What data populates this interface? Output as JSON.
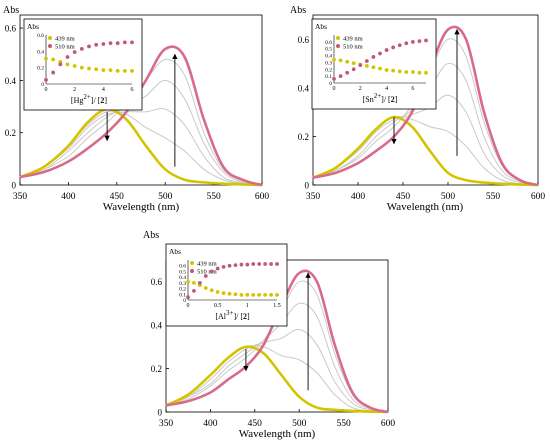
{
  "chart_data": [
    {
      "type": "line",
      "id": "hg",
      "ylabel": "Abs",
      "xlabel": "Wavelength (nm)",
      "xlim": [
        350,
        600
      ],
      "ylim": [
        0,
        0.65
      ],
      "xticks": [
        350,
        400,
        450,
        500,
        550,
        600
      ],
      "yticks": [
        0,
        0.2,
        0.4,
        0.6
      ],
      "ytick_labels": [
        "0",
        "0.2",
        "0.4",
        "0.6"
      ],
      "series": [
        {
          "color": "#d4c400",
          "style": "initial",
          "x": [
            350,
            375,
            400,
            420,
            440,
            460,
            480,
            500,
            520,
            540,
            560,
            580,
            600
          ],
          "y": [
            0.03,
            0.07,
            0.15,
            0.24,
            0.29,
            0.25,
            0.15,
            0.06,
            0.02,
            0.01,
            0.005,
            0.002,
            0.0
          ]
        },
        {
          "color": "#c9c9c9",
          "style": "mid",
          "x": [
            350,
            375,
            400,
            420,
            440,
            460,
            480,
            500,
            520,
            540,
            560,
            580,
            600
          ],
          "y": [
            0.03,
            0.07,
            0.15,
            0.23,
            0.28,
            0.27,
            0.22,
            0.18,
            0.13,
            0.06,
            0.02,
            0.005,
            0.0
          ]
        },
        {
          "color": "#c9c9c9",
          "style": "mid",
          "x": [
            350,
            375,
            400,
            420,
            440,
            460,
            480,
            500,
            520,
            540,
            560,
            580,
            600
          ],
          "y": [
            0.03,
            0.07,
            0.14,
            0.22,
            0.27,
            0.28,
            0.28,
            0.29,
            0.23,
            0.11,
            0.03,
            0.008,
            0.0
          ]
        },
        {
          "color": "#c9c9c9",
          "style": "mid",
          "x": [
            350,
            375,
            400,
            420,
            440,
            460,
            480,
            500,
            520,
            540,
            560,
            580,
            600
          ],
          "y": [
            0.03,
            0.06,
            0.13,
            0.2,
            0.26,
            0.3,
            0.34,
            0.4,
            0.33,
            0.16,
            0.05,
            0.01,
            0.0
          ]
        },
        {
          "color": "#c9c9c9",
          "style": "mid",
          "x": [
            350,
            375,
            400,
            420,
            440,
            460,
            480,
            500,
            520,
            540,
            560,
            580,
            600
          ],
          "y": [
            0.03,
            0.06,
            0.11,
            0.18,
            0.24,
            0.31,
            0.4,
            0.48,
            0.42,
            0.2,
            0.06,
            0.015,
            0.0
          ]
        },
        {
          "color": "#d96b8a",
          "style": "final",
          "x": [
            350,
            375,
            400,
            420,
            440,
            460,
            480,
            500,
            520,
            540,
            560,
            580,
            600
          ],
          "y": [
            0.03,
            0.05,
            0.09,
            0.14,
            0.2,
            0.28,
            0.4,
            0.52,
            0.49,
            0.25,
            0.07,
            0.02,
            0.0
          ]
        }
      ],
      "arrows": [
        {
          "x": 440,
          "y_from": 0.28,
          "y_to": 0.17
        },
        {
          "x": 510,
          "y_from": 0.07,
          "y_to": 0.5
        }
      ],
      "inset": {
        "ylabel": "Abs",
        "xlabel_html": "[Hg<tspan baseline-shift='super' font-size='7'>2+</tspan>]/ [<tspan font-weight='bold'>2</tspan>]",
        "xlim": [
          0,
          6
        ],
        "ylim": [
          0,
          0.6
        ],
        "xticks": [
          0,
          2,
          4,
          6
        ],
        "xtick_labels": [
          "0",
          "2",
          "4",
          "6"
        ],
        "yticks": [
          0,
          0.2,
          0.4,
          0.6
        ],
        "ytick_labels": [
          "0",
          "0.2",
          "0.4",
          "0.6"
        ],
        "legend": [
          {
            "label": "439 nm",
            "color": "#d4c400"
          },
          {
            "label": "510 nm",
            "color": "#c05a74"
          }
        ],
        "series": [
          {
            "name": "439 nm",
            "color": "#d4c400",
            "x": [
              0,
              0.5,
              1,
              1.5,
              2,
              2.5,
              3,
              3.5,
              4,
              4.5,
              5,
              5.5,
              6
            ],
            "y": [
              0.31,
              0.3,
              0.27,
              0.24,
              0.22,
              0.2,
              0.19,
              0.18,
              0.17,
              0.17,
              0.16,
              0.16,
              0.16
            ]
          },
          {
            "name": "510 nm",
            "color": "#c05a74",
            "x": [
              0,
              0.5,
              1,
              1.5,
              2,
              2.5,
              3,
              3.5,
              4,
              4.5,
              5,
              5.5,
              6
            ],
            "y": [
              0.05,
              0.14,
              0.24,
              0.33,
              0.39,
              0.43,
              0.46,
              0.48,
              0.49,
              0.5,
              0.5,
              0.51,
              0.51
            ]
          }
        ]
      }
    },
    {
      "type": "line",
      "id": "sn",
      "ylabel": "Abs",
      "xlabel": "Wavelength (nm)",
      "xlim": [
        350,
        600
      ],
      "ylim": [
        0,
        0.7
      ],
      "xticks": [
        350,
        400,
        450,
        500,
        550,
        600
      ],
      "yticks": [
        0,
        0.2,
        0.4,
        0.6
      ],
      "ytick_labels": [
        "0",
        "0.2",
        "0.4",
        "0.6"
      ],
      "series": [
        {
          "color": "#d4c400",
          "style": "initial",
          "x": [
            350,
            375,
            400,
            420,
            440,
            460,
            480,
            500,
            520,
            540,
            560,
            580,
            600
          ],
          "y": [
            0.03,
            0.07,
            0.15,
            0.23,
            0.28,
            0.24,
            0.14,
            0.05,
            0.02,
            0.01,
            0.005,
            0.002,
            0.0
          ]
        },
        {
          "color": "#c9c9c9",
          "style": "mid",
          "x": [
            350,
            375,
            400,
            420,
            440,
            460,
            480,
            500,
            520,
            540,
            560,
            580,
            600
          ],
          "y": [
            0.03,
            0.07,
            0.15,
            0.23,
            0.28,
            0.27,
            0.24,
            0.22,
            0.16,
            0.07,
            0.02,
            0.005,
            0.0
          ]
        },
        {
          "color": "#c9c9c9",
          "style": "mid",
          "x": [
            350,
            375,
            400,
            420,
            440,
            460,
            480,
            500,
            520,
            540,
            560,
            580,
            600
          ],
          "y": [
            0.03,
            0.07,
            0.14,
            0.22,
            0.27,
            0.29,
            0.32,
            0.37,
            0.3,
            0.13,
            0.04,
            0.01,
            0.0
          ]
        },
        {
          "color": "#c9c9c9",
          "style": "mid",
          "x": [
            350,
            375,
            400,
            420,
            440,
            460,
            480,
            500,
            520,
            540,
            560,
            580,
            600
          ],
          "y": [
            0.03,
            0.06,
            0.12,
            0.2,
            0.26,
            0.31,
            0.4,
            0.5,
            0.43,
            0.2,
            0.06,
            0.015,
            0.0
          ]
        },
        {
          "color": "#c9c9c9",
          "style": "mid",
          "x": [
            350,
            375,
            400,
            420,
            440,
            460,
            480,
            500,
            520,
            540,
            560,
            580,
            600
          ],
          "y": [
            0.03,
            0.06,
            0.11,
            0.18,
            0.24,
            0.33,
            0.47,
            0.6,
            0.53,
            0.26,
            0.08,
            0.02,
            0.0
          ]
        },
        {
          "color": "#d96b8a",
          "style": "final",
          "x": [
            350,
            375,
            400,
            420,
            440,
            460,
            480,
            500,
            520,
            540,
            560,
            580,
            600
          ],
          "y": [
            0.03,
            0.05,
            0.09,
            0.14,
            0.2,
            0.3,
            0.48,
            0.64,
            0.6,
            0.3,
            0.09,
            0.02,
            0.0
          ]
        }
      ],
      "arrows": [
        {
          "x": 440,
          "y_from": 0.28,
          "y_to": 0.17
        },
        {
          "x": 510,
          "y_from": 0.12,
          "y_to": 0.64
        }
      ],
      "inset": {
        "ylabel": "Abs",
        "xlabel_html": "[Sn<tspan baseline-shift='super' font-size='7'>2+</tspan>]/ [<tspan font-weight='bold'>2</tspan>]",
        "xlim": [
          0,
          7
        ],
        "ylim": [
          0,
          0.7
        ],
        "xticks": [
          0,
          2,
          4,
          6
        ],
        "xtick_labels": [
          "0",
          "2",
          "4",
          "6"
        ],
        "yticks": [
          0,
          0.1,
          0.2,
          0.3,
          0.4,
          0.5,
          0.6
        ],
        "ytick_labels": [
          "0",
          "0.1",
          "0.2",
          "0.3",
          "0.4",
          "0.5",
          "0.6"
        ],
        "legend": [
          {
            "label": "439 nm",
            "color": "#d4c400"
          },
          {
            "label": "510 nm",
            "color": "#c05a74"
          }
        ],
        "series": [
          {
            "name": "439 nm",
            "color": "#d4c400",
            "x": [
              0,
              0.5,
              1,
              1.5,
              2,
              2.5,
              3,
              3.5,
              4,
              4.5,
              5,
              5.5,
              6,
              6.5,
              7
            ],
            "y": [
              0.34,
              0.33,
              0.31,
              0.29,
              0.27,
              0.25,
              0.23,
              0.21,
              0.19,
              0.18,
              0.17,
              0.16,
              0.16,
              0.15,
              0.15
            ]
          },
          {
            "name": "510 nm",
            "color": "#c05a74",
            "x": [
              0,
              0.5,
              1,
              1.5,
              2,
              2.5,
              3,
              3.5,
              4,
              4.5,
              5,
              5.5,
              6,
              6.5,
              7
            ],
            "y": [
              0.06,
              0.1,
              0.15,
              0.2,
              0.26,
              0.32,
              0.38,
              0.43,
              0.48,
              0.52,
              0.55,
              0.58,
              0.6,
              0.61,
              0.62
            ]
          }
        ]
      }
    },
    {
      "type": "line",
      "id": "al",
      "ylabel": "Abs",
      "xlabel": "Wavelength (nm)",
      "xlim": [
        350,
        600
      ],
      "ylim": [
        0,
        0.7
      ],
      "xticks": [
        350,
        400,
        450,
        500,
        550,
        600
      ],
      "yticks": [
        0,
        0.2,
        0.4,
        0.6
      ],
      "ytick_labels": [
        "0",
        "0.2",
        "0.4",
        "0.6"
      ],
      "series": [
        {
          "color": "#d4c400",
          "style": "initial",
          "x": [
            350,
            375,
            400,
            420,
            440,
            460,
            480,
            500,
            520,
            540,
            560,
            580,
            600
          ],
          "y": [
            0.03,
            0.08,
            0.17,
            0.25,
            0.3,
            0.27,
            0.17,
            0.07,
            0.02,
            0.01,
            0.005,
            0.002,
            0.0
          ]
        },
        {
          "color": "#c9c9c9",
          "style": "mid",
          "x": [
            350,
            375,
            400,
            420,
            440,
            460,
            480,
            500,
            520,
            540,
            560,
            580,
            600
          ],
          "y": [
            0.03,
            0.08,
            0.17,
            0.25,
            0.3,
            0.3,
            0.26,
            0.24,
            0.18,
            0.08,
            0.02,
            0.005,
            0.0
          ]
        },
        {
          "color": "#c9c9c9",
          "style": "mid",
          "x": [
            350,
            375,
            400,
            420,
            440,
            460,
            480,
            500,
            520,
            540,
            560,
            580,
            600
          ],
          "y": [
            0.03,
            0.07,
            0.15,
            0.23,
            0.29,
            0.32,
            0.34,
            0.38,
            0.31,
            0.14,
            0.04,
            0.01,
            0.0
          ]
        },
        {
          "color": "#c9c9c9",
          "style": "mid",
          "x": [
            350,
            375,
            400,
            420,
            440,
            460,
            480,
            500,
            520,
            540,
            560,
            580,
            600
          ],
          "y": [
            0.03,
            0.07,
            0.13,
            0.21,
            0.27,
            0.33,
            0.41,
            0.5,
            0.44,
            0.21,
            0.06,
            0.015,
            0.0
          ]
        },
        {
          "color": "#c9c9c9",
          "style": "mid",
          "x": [
            350,
            375,
            400,
            420,
            440,
            460,
            480,
            500,
            520,
            540,
            560,
            580,
            600
          ],
          "y": [
            0.03,
            0.06,
            0.12,
            0.19,
            0.25,
            0.33,
            0.47,
            0.6,
            0.54,
            0.27,
            0.08,
            0.02,
            0.0
          ]
        },
        {
          "color": "#d96b8a",
          "style": "final",
          "x": [
            350,
            375,
            400,
            420,
            440,
            460,
            480,
            500,
            520,
            540,
            560,
            580,
            600
          ],
          "y": [
            0.03,
            0.05,
            0.09,
            0.15,
            0.21,
            0.31,
            0.49,
            0.64,
            0.6,
            0.31,
            0.09,
            0.02,
            0.0
          ]
        }
      ],
      "arrows": [
        {
          "x": 440,
          "y_from": 0.29,
          "y_to": 0.19
        },
        {
          "x": 510,
          "y_from": 0.1,
          "y_to": 0.64
        }
      ],
      "inset": {
        "ylabel": "Abs",
        "xlabel_html": "[Al<tspan baseline-shift='super' font-size='7'>3+</tspan>]/ [<tspan font-weight='bold'>2</tspan>]",
        "xlim": [
          0,
          1.5
        ],
        "ylim": [
          0,
          0.7
        ],
        "xticks": [
          0,
          0.5,
          1,
          1.5
        ],
        "xtick_labels": [
          "0",
          "0.5",
          "1",
          "1.5"
        ],
        "yticks": [
          0,
          0.1,
          0.2,
          0.3,
          0.4,
          0.5,
          0.6
        ],
        "ytick_labels": [
          "0",
          "0.1",
          "0.2",
          "0.3",
          "0.4",
          "0.5",
          "0.6"
        ],
        "legend": [
          {
            "label": "439 nm",
            "color": "#d4c400"
          },
          {
            "label": "510 nm",
            "color": "#c05a74"
          }
        ],
        "series": [
          {
            "name": "439 nm",
            "color": "#d4c400",
            "x": [
              0,
              0.1,
              0.2,
              0.3,
              0.4,
              0.5,
              0.6,
              0.7,
              0.8,
              0.9,
              1,
              1.1,
              1.2,
              1.3,
              1.4,
              1.5
            ],
            "y": [
              0.32,
              0.3,
              0.26,
              0.21,
              0.17,
              0.14,
              0.12,
              0.11,
              0.1,
              0.09,
              0.09,
              0.09,
              0.09,
              0.09,
              0.09,
              0.09
            ]
          },
          {
            "name": "510 nm",
            "color": "#c05a74",
            "x": [
              0,
              0.1,
              0.2,
              0.3,
              0.4,
              0.5,
              0.6,
              0.7,
              0.8,
              0.9,
              1,
              1.1,
              1.2,
              1.3,
              1.4,
              1.5
            ],
            "y": [
              0.05,
              0.16,
              0.3,
              0.42,
              0.5,
              0.55,
              0.58,
              0.6,
              0.61,
              0.62,
              0.62,
              0.63,
              0.63,
              0.63,
              0.63,
              0.63
            ]
          }
        ]
      }
    }
  ]
}
